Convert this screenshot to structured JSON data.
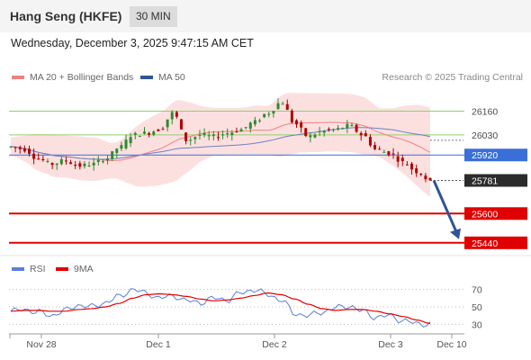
{
  "header": {
    "title": "Hang Seng (HKFE)",
    "timeframe": "30 MIN"
  },
  "datetime": "Wednesday, December 3, 2025 9:47:15 AM CET",
  "credit": "Research © 2025 Trading Central",
  "legend": {
    "bb": {
      "label": "MA 20 + Bollinger Bands",
      "color": "#f08080"
    },
    "ma50": {
      "label": "MA 50",
      "color": "#2f5597"
    },
    "rsi": {
      "label": "RSI",
      "color": "#5b7fd8"
    },
    "ma9": {
      "label": "9MA",
      "color": "#e00000"
    }
  },
  "chart_data": [
    {
      "type": "candlestick",
      "title": "",
      "ylim": [
        25380,
        26300
      ],
      "x_labels": [
        "Nov 28",
        "Dec 1",
        "Dec 2",
        "Dec 3",
        "Dec 10"
      ],
      "levels": [
        {
          "value": 26160,
          "label": "26160",
          "kind": "resistance",
          "color": "#8fcf6f"
        },
        {
          "value": 26030,
          "label": "26030",
          "kind": "resistance",
          "color": "#8fcf6f"
        },
        {
          "value": 25920,
          "label": "25920",
          "kind": "pivot",
          "color": "#3a6fd8"
        },
        {
          "value": 25781,
          "label": "25781",
          "kind": "last",
          "color": "#333333"
        },
        {
          "value": 25600,
          "label": "25600",
          "kind": "support",
          "color": "#e00000"
        },
        {
          "value": 25440,
          "label": "25440",
          "kind": "support",
          "color": "#e00000"
        }
      ],
      "forecast": {
        "from": 25781,
        "to": 25440,
        "color": "#2f5597"
      },
      "anchors": [
        25965,
        25950,
        25900,
        25870,
        25890,
        25860,
        25870,
        25900,
        25960,
        26030,
        26040,
        26060,
        26150,
        26000,
        26030,
        26020,
        26040,
        26060,
        26100,
        26150,
        26210,
        26090,
        26020,
        26050,
        26060,
        26080,
        26030,
        25950,
        25930,
        25880,
        25830,
        25781
      ]
    },
    {
      "type": "line",
      "title": "",
      "ylim": [
        20,
        80
      ],
      "y_ticks": [
        70,
        50,
        30
      ],
      "series": [
        {
          "name": "RSI",
          "anchors": [
            45,
            47,
            44,
            40,
            46,
            52,
            50,
            55,
            62,
            70,
            66,
            60,
            63,
            57,
            55,
            60,
            58,
            66,
            70,
            64,
            58,
            42,
            40,
            44,
            49,
            51,
            45,
            38,
            40,
            34,
            31,
            30
          ]
        },
        {
          "name": "9MA",
          "anchors": [
            45,
            46,
            46,
            45,
            45,
            47,
            48,
            50,
            54,
            60,
            64,
            65,
            64,
            62,
            59,
            57,
            58,
            60,
            63,
            66,
            64,
            59,
            53,
            48,
            46,
            47,
            47,
            45,
            42,
            39,
            35,
            31
          ]
        }
      ]
    }
  ]
}
